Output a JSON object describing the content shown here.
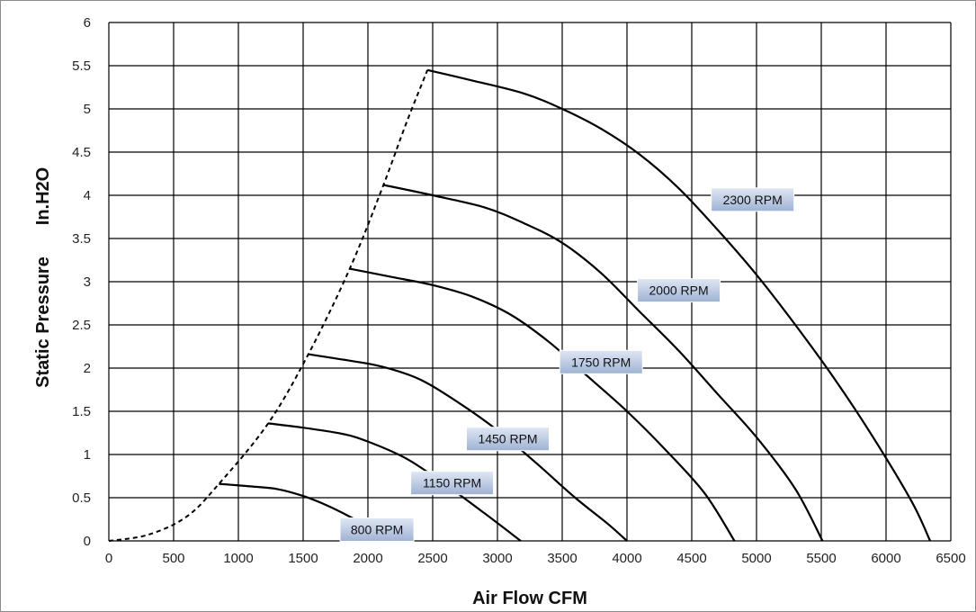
{
  "chart_data": {
    "type": "line",
    "title": "",
    "xlabel": "Air Flow CFM",
    "ylabel_parts": [
      "Static Pressure",
      "In.H2O"
    ],
    "xlim": [
      0,
      6500
    ],
    "ylim": [
      0,
      6
    ],
    "x_ticks": [
      "0",
      "500",
      "1000",
      "1500",
      "2000",
      "2500",
      "3000",
      "3500",
      "4000",
      "4500",
      "5000",
      "5500",
      "6000",
      "6500"
    ],
    "y_ticks": [
      "0",
      "0.5",
      "1",
      "1.5",
      "2",
      "2.5",
      "3",
      "3.5",
      "4",
      "4.5",
      "5",
      "5.5",
      "6"
    ],
    "grid": true,
    "legend": "none",
    "line_color": "#000000",
    "series": [
      {
        "name": "800 RPM",
        "points": [
          [
            850,
            0.66
          ],
          [
            1100,
            0.63
          ],
          [
            1300,
            0.6
          ],
          [
            1500,
            0.52
          ],
          [
            1700,
            0.4
          ],
          [
            1900,
            0.25
          ],
          [
            2100,
            0.1
          ],
          [
            2250,
            0
          ]
        ]
      },
      {
        "name": "1150 RPM",
        "points": [
          [
            1230,
            1.36
          ],
          [
            1500,
            1.31
          ],
          [
            1800,
            1.24
          ],
          [
            2000,
            1.15
          ],
          [
            2300,
            0.95
          ],
          [
            2600,
            0.65
          ],
          [
            2900,
            0.32
          ],
          [
            3180,
            0
          ]
        ]
      },
      {
        "name": "1450 RPM",
        "points": [
          [
            1540,
            2.16
          ],
          [
            1800,
            2.1
          ],
          [
            2100,
            2.02
          ],
          [
            2400,
            1.87
          ],
          [
            2700,
            1.6
          ],
          [
            3000,
            1.28
          ],
          [
            3300,
            0.9
          ],
          [
            3600,
            0.5
          ],
          [
            3850,
            0.2
          ],
          [
            4000,
            0
          ]
        ]
      },
      {
        "name": "1750 RPM",
        "points": [
          [
            1860,
            3.15
          ],
          [
            2200,
            3.05
          ],
          [
            2500,
            2.96
          ],
          [
            2800,
            2.83
          ],
          [
            3100,
            2.62
          ],
          [
            3400,
            2.3
          ],
          [
            3700,
            1.9
          ],
          [
            4000,
            1.5
          ],
          [
            4300,
            1.05
          ],
          [
            4600,
            0.55
          ],
          [
            4830,
            0
          ]
        ]
      },
      {
        "name": "2000 RPM",
        "points": [
          [
            2120,
            4.12
          ],
          [
            2500,
            4.0
          ],
          [
            2900,
            3.86
          ],
          [
            3200,
            3.68
          ],
          [
            3500,
            3.45
          ],
          [
            3800,
            3.1
          ],
          [
            4100,
            2.65
          ],
          [
            4400,
            2.2
          ],
          [
            4700,
            1.7
          ],
          [
            5000,
            1.2
          ],
          [
            5300,
            0.6
          ],
          [
            5510,
            0
          ]
        ]
      },
      {
        "name": "2300 RPM",
        "points": [
          [
            2460,
            5.45
          ],
          [
            2800,
            5.33
          ],
          [
            3200,
            5.18
          ],
          [
            3500,
            5.0
          ],
          [
            3800,
            4.77
          ],
          [
            4100,
            4.47
          ],
          [
            4400,
            4.08
          ],
          [
            4700,
            3.6
          ],
          [
            5000,
            3.08
          ],
          [
            5300,
            2.5
          ],
          [
            5600,
            1.88
          ],
          [
            5900,
            1.2
          ],
          [
            6200,
            0.45
          ],
          [
            6340,
            0
          ]
        ]
      }
    ],
    "system_curve": {
      "style": "dashed",
      "points": [
        [
          0,
          0
        ],
        [
          300,
          0.07
        ],
        [
          600,
          0.28
        ],
        [
          850,
          0.66
        ],
        [
          1230,
          1.36
        ],
        [
          1540,
          2.16
        ],
        [
          1860,
          3.15
        ],
        [
          2120,
          4.12
        ],
        [
          2300,
          4.85
        ],
        [
          2460,
          5.45
        ]
      ]
    },
    "labels": [
      {
        "text": "800 RPM",
        "x": 2070,
        "y": 0.13
      },
      {
        "text": "1150 RPM",
        "x": 2650,
        "y": 0.67
      },
      {
        "text": "1450 RPM",
        "x": 3080,
        "y": 1.18
      },
      {
        "text": "1750 RPM",
        "x": 3800,
        "y": 2.07
      },
      {
        "text": "2000 RPM",
        "x": 4400,
        "y": 2.9
      },
      {
        "text": "2300 RPM",
        "x": 4970,
        "y": 3.95
      }
    ],
    "label_style": {
      "fill_top": "#dfe7f4",
      "fill_bottom": "#9fb2d4"
    }
  }
}
